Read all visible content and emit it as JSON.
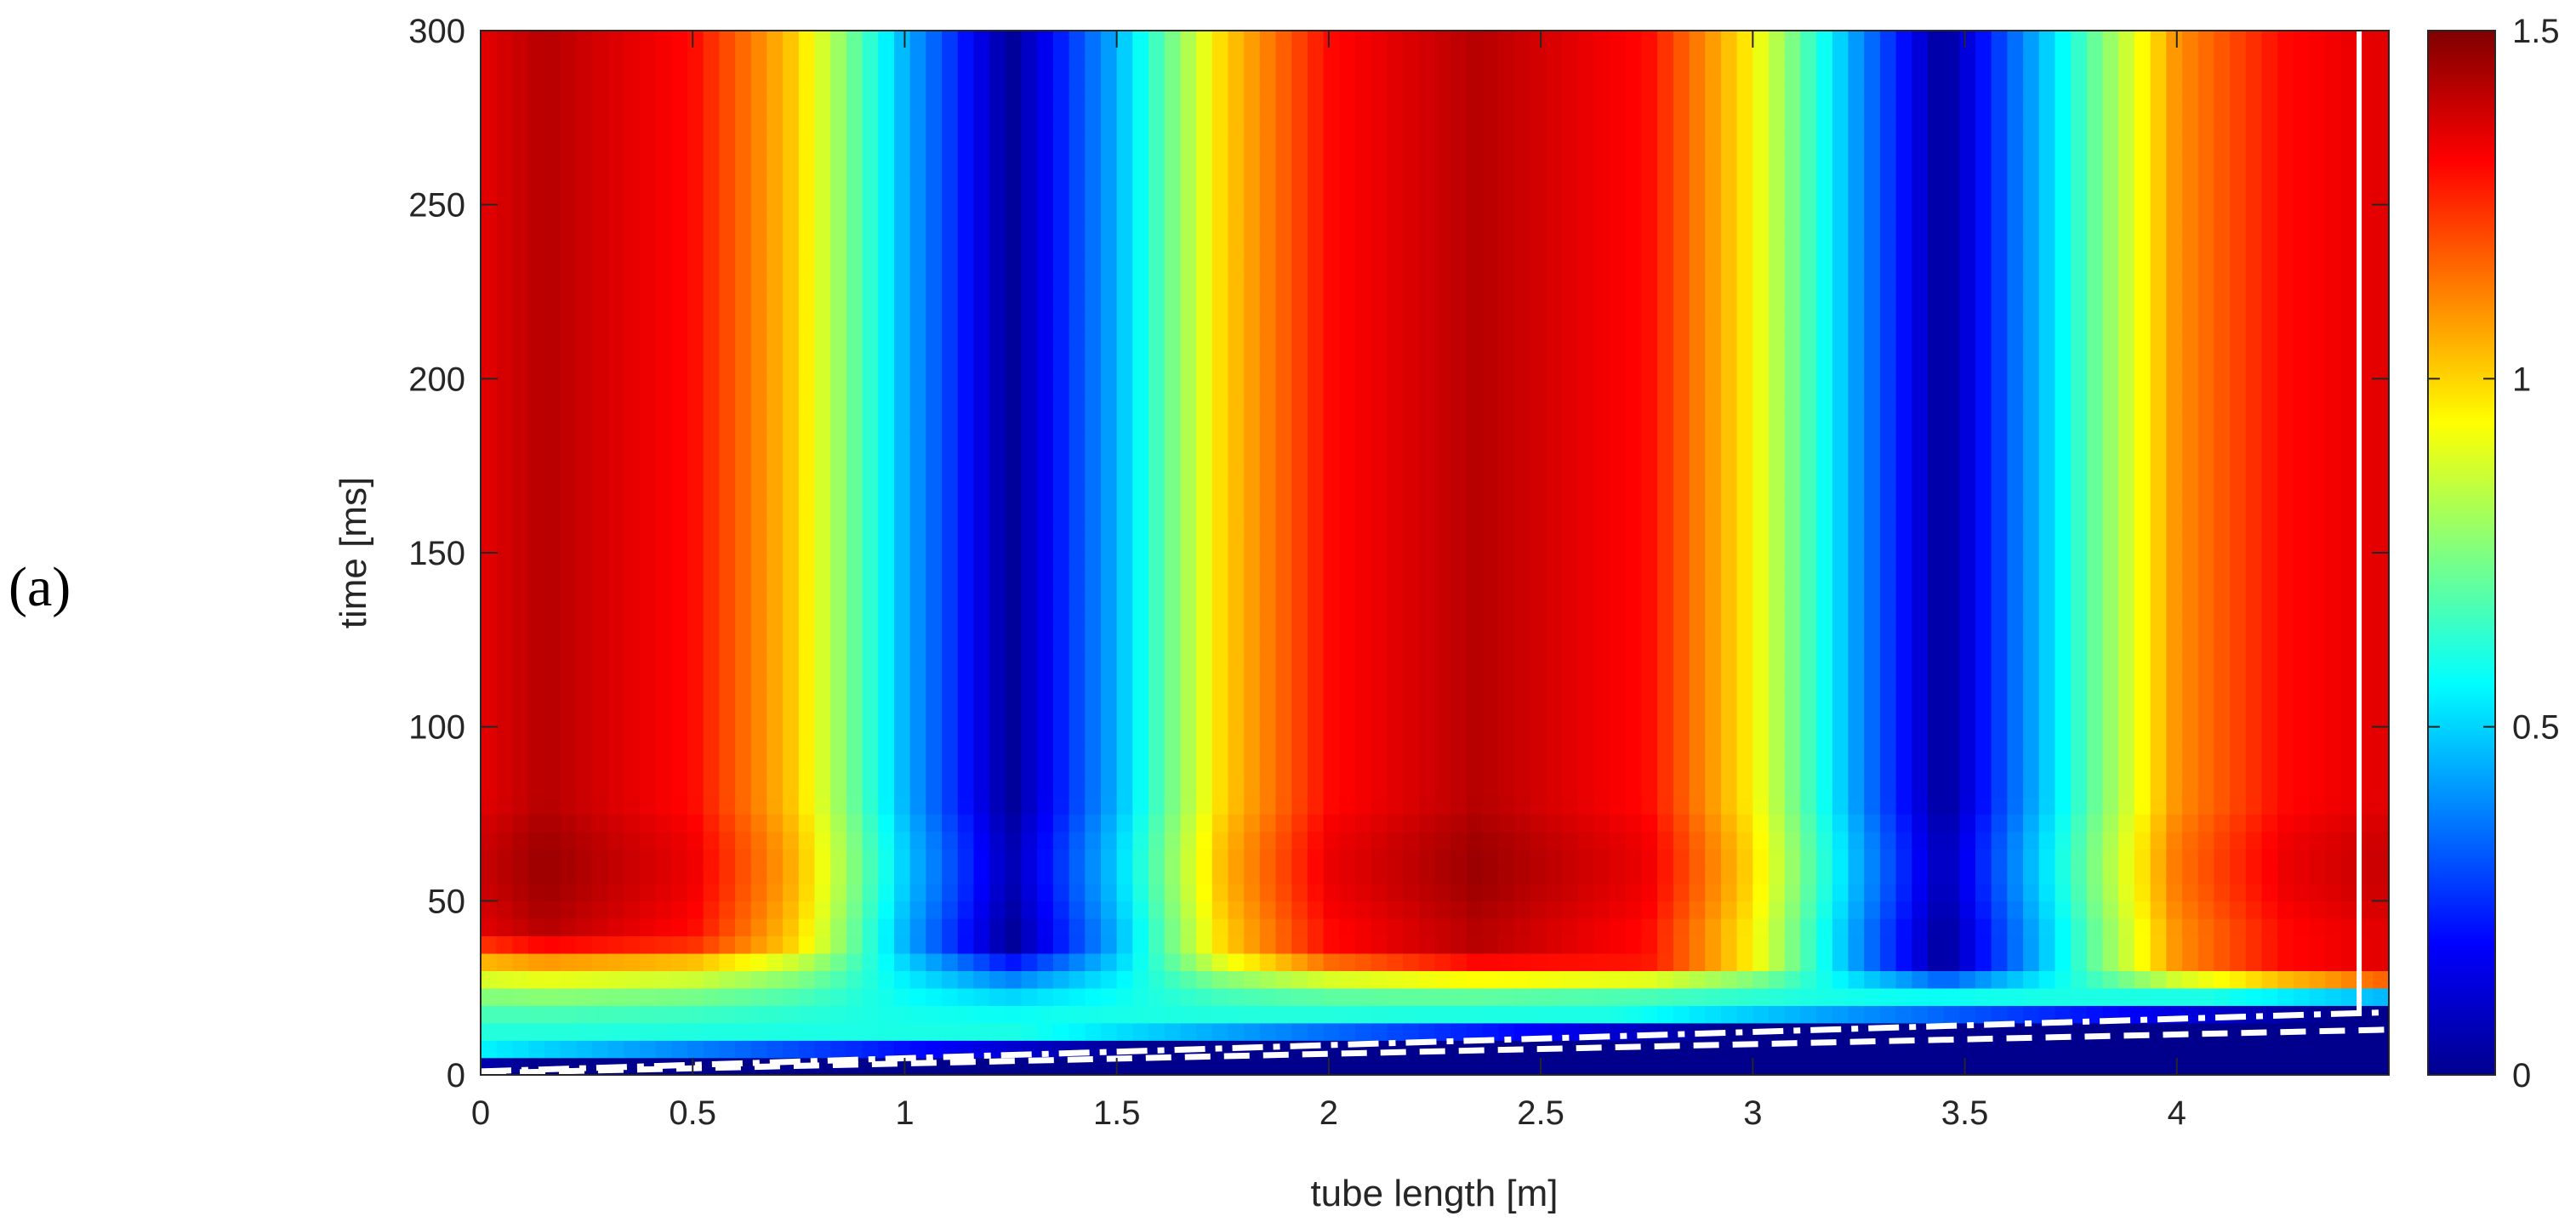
{
  "panel_label": "(a)",
  "chart_data": {
    "type": "heatmap",
    "title": "",
    "xlabel": "tube length [m]",
    "ylabel": "time [ms]",
    "xlim": [
      0,
      4.5
    ],
    "ylim": [
      0,
      300
    ],
    "x_ticks": [
      0,
      0.5,
      1,
      1.5,
      2,
      2.5,
      3,
      3.5,
      4
    ],
    "x_tick_labels": [
      "0",
      "0.5",
      "1",
      "1.5",
      "2",
      "2.5",
      "3",
      "3.5",
      "4"
    ],
    "y_ticks": [
      0,
      50,
      100,
      150,
      200,
      250,
      300
    ],
    "y_tick_labels": [
      "0",
      "50",
      "100",
      "150",
      "200",
      "250",
      "300"
    ],
    "colormap": "jet",
    "colorbar": {
      "limits": [
        0,
        1.5
      ],
      "ticks": [
        0,
        0.5,
        1,
        1.5
      ],
      "tick_labels": [
        "0",
        "0.5",
        "1",
        "1.5"
      ]
    },
    "standing_wave_profile": {
      "x": [
        0,
        0.15,
        0.5,
        0.75,
        1.0,
        1.25,
        1.5,
        1.75,
        2.0,
        2.35,
        2.75,
        3.0,
        3.25,
        3.45,
        3.75,
        4.0,
        4.25,
        4.45
      ],
      "value": [
        1.35,
        1.42,
        1.3,
        1.0,
        0.45,
        0.03,
        0.45,
        1.0,
        1.3,
        1.42,
        1.3,
        0.95,
        0.4,
        0.03,
        0.6,
        1.1,
        1.3,
        1.35
      ]
    },
    "transient_band": {
      "description_values": "rising front from near 0 ms at x=0 to about 20 ms at x=4.5",
      "front_time_start": 2,
      "front_time_end": 18,
      "settle_time_start": 40,
      "settle_time_end": 28
    },
    "overlay_lines": [
      {
        "type": "dash-dot",
        "color": "#ffffff",
        "x": [
          0,
          4.5
        ],
        "y": [
          1,
          18
        ]
      },
      {
        "type": "dashed",
        "color": "#ffffff",
        "x": [
          0,
          4.5
        ],
        "y": [
          0.5,
          13
        ]
      },
      {
        "type": "solid-vertical",
        "color": "#ffffff",
        "x": [
          4.43,
          4.43
        ],
        "y": [
          17,
          300
        ]
      }
    ]
  }
}
